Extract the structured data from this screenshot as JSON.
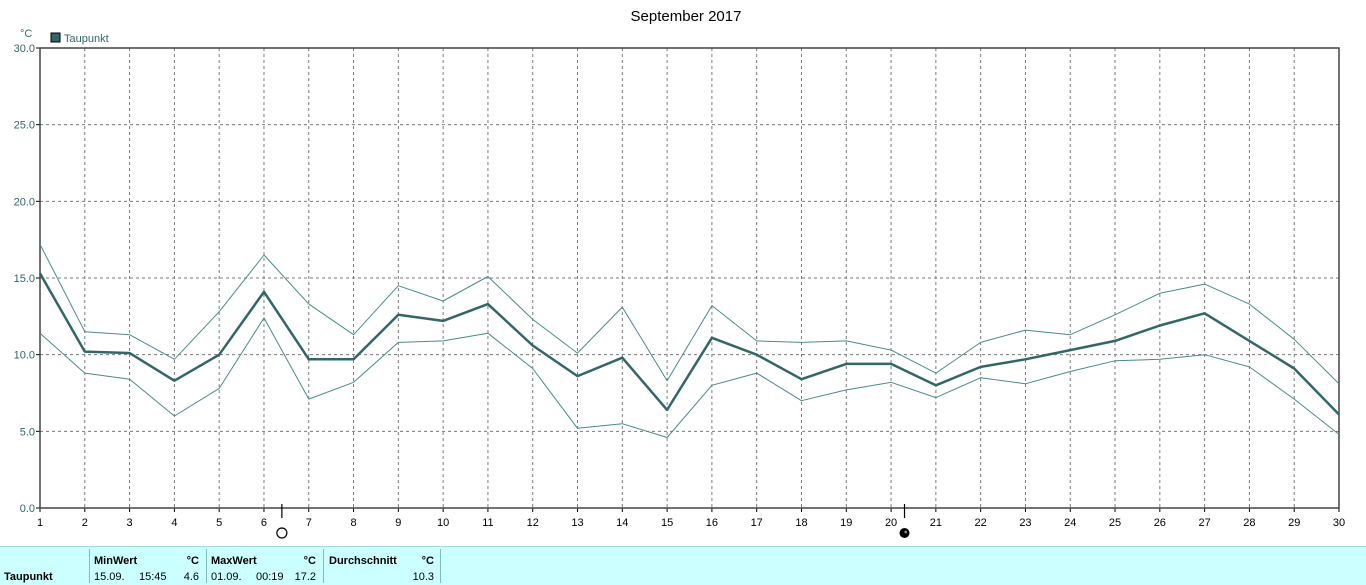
{
  "chart_data": {
    "type": "line",
    "title": "September 2017",
    "yunit": "°C",
    "ylim": [
      0,
      30
    ],
    "ytick_labels": [
      "0.0",
      "5.0",
      "10.0",
      "15.0",
      "20.0",
      "25.0",
      "30.0"
    ],
    "x": [
      1,
      2,
      3,
      4,
      5,
      6,
      7,
      8,
      9,
      10,
      11,
      12,
      13,
      14,
      15,
      16,
      17,
      18,
      19,
      20,
      21,
      22,
      23,
      24,
      25,
      26,
      27,
      28,
      29,
      30
    ],
    "grid": true,
    "legend": {
      "position": "top-left",
      "entries": [
        "Taupunkt"
      ]
    },
    "series": [
      {
        "name": "Taupunkt",
        "role": "mean",
        "color": "#336666",
        "values": [
          15.3,
          10.2,
          10.1,
          8.3,
          10.0,
          14.1,
          9.7,
          9.7,
          12.6,
          12.2,
          13.3,
          10.6,
          8.6,
          9.8,
          6.4,
          11.1,
          10.0,
          8.4,
          9.4,
          9.4,
          8.0,
          9.2,
          9.7,
          10.3,
          10.9,
          11.9,
          12.7,
          10.9,
          9.1,
          6.1
        ]
      },
      {
        "role": "daily-max",
        "color": "#4a8a8a",
        "values": [
          17.2,
          11.5,
          11.3,
          9.7,
          12.8,
          16.5,
          13.3,
          11.3,
          14.5,
          13.5,
          15.1,
          12.3,
          10.1,
          13.1,
          8.3,
          13.2,
          10.9,
          10.8,
          10.9,
          10.3,
          8.8,
          10.8,
          11.6,
          11.3,
          12.6,
          14.0,
          14.6,
          13.3,
          11.0,
          8.1
        ]
      },
      {
        "role": "daily-min",
        "color": "#4a8a8a",
        "values": [
          11.4,
          8.8,
          8.4,
          6.0,
          7.8,
          12.4,
          7.1,
          8.2,
          10.8,
          10.9,
          11.4,
          9.1,
          5.2,
          5.5,
          4.6,
          8.0,
          8.8,
          7.0,
          7.7,
          8.2,
          7.2,
          8.5,
          8.1,
          8.9,
          9.6,
          9.7,
          10.0,
          9.2,
          7.1,
          4.8
        ]
      }
    ],
    "moon_phases": [
      {
        "day": 6.4,
        "phase": "full-moon"
      },
      {
        "day": 20.3,
        "phase": "new-moon"
      }
    ]
  },
  "stats": {
    "series_name": "Taupunkt",
    "min": {
      "label": "MinWert",
      "unit": "°C",
      "date": "15.09.",
      "time": "15:45",
      "value": "4.6"
    },
    "max": {
      "label": "MaxWert",
      "unit": "°C",
      "date": "01.09.",
      "time": "00:19",
      "value": "17.2"
    },
    "avg": {
      "label": "Durchschnitt",
      "unit": "°C",
      "value": "10.3"
    }
  }
}
